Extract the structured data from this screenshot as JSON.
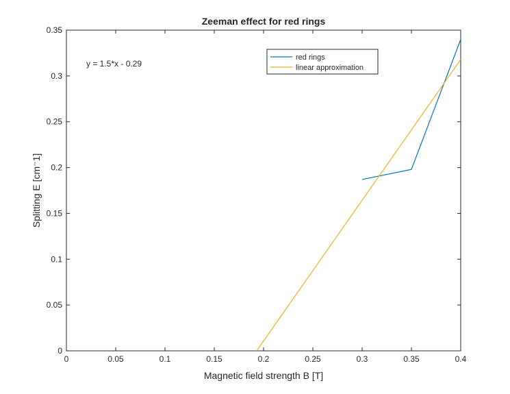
{
  "chart_data": {
    "type": "line",
    "title": "Zeeman effect for red rings",
    "xlabel": "Magnetic field strength B [T]",
    "ylabel": "Splitting E [cm⁻1]",
    "xlim": [
      0,
      0.4
    ],
    "ylim": [
      0,
      0.35
    ],
    "x_ticks": [
      0,
      0.05,
      0.1,
      0.15,
      0.2,
      0.25,
      0.3,
      0.35,
      0.4
    ],
    "x_tick_labels": [
      "0",
      "0.05",
      "0.1",
      "0.15",
      "0.2",
      "0.25",
      "0.3",
      "0.35",
      "0.4"
    ],
    "y_ticks": [
      0,
      0.05,
      0.1,
      0.15,
      0.2,
      0.25,
      0.3,
      0.35
    ],
    "y_tick_labels": [
      "0",
      "0.05",
      "0.1",
      "0.15",
      "0.2",
      "0.25",
      "0.3",
      "0.35"
    ],
    "grid": false,
    "legend_position": "top-right",
    "series": [
      {
        "name": "red rings",
        "color": "#0072BD",
        "x": [
          0.3,
          0.35,
          0.4
        ],
        "y": [
          0.187,
          0.198,
          0.34
        ]
      },
      {
        "name": "linear approximation",
        "color": "#EDB120",
        "x": [
          0.193,
          0.4
        ],
        "y": [
          0,
          0.318
        ]
      }
    ],
    "annotations": [
      {
        "text": "y = 1.5*x - 0.29"
      }
    ]
  }
}
